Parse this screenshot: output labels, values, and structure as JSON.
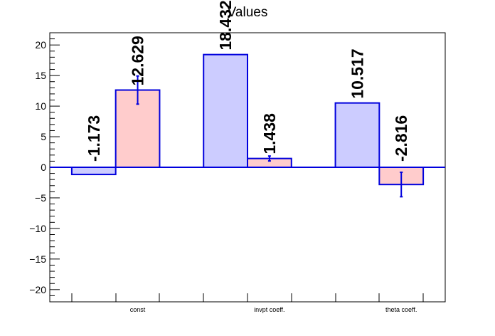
{
  "chart_data": {
    "type": "bar",
    "title": "Values",
    "xlabel": "",
    "ylabel": "",
    "categories": [
      "const",
      "invpt coeff.",
      "theta coeff."
    ],
    "ylim": [
      -22,
      22
    ],
    "yticks": [
      -20,
      -15,
      -10,
      -5,
      0,
      5,
      10,
      15,
      20
    ],
    "series": [
      {
        "values": [
          -1.173,
          18.432,
          10.517
        ],
        "labels": [
          "-1.173",
          "18.432",
          "10.517"
        ],
        "errors": [
          0,
          0,
          0
        ],
        "fill": "#ccccff",
        "stroke": "#0000dd"
      },
      {
        "values": [
          12.629,
          1.438,
          -2.816
        ],
        "labels": [
          "12.629",
          "1.438",
          "-2.816"
        ],
        "errors": [
          2.3,
          0.4,
          2.0
        ],
        "fill": "#ffcccc",
        "stroke": "#0000dd"
      }
    ],
    "zero_line_color": "#0000dd",
    "grid": false,
    "legend": "none"
  }
}
